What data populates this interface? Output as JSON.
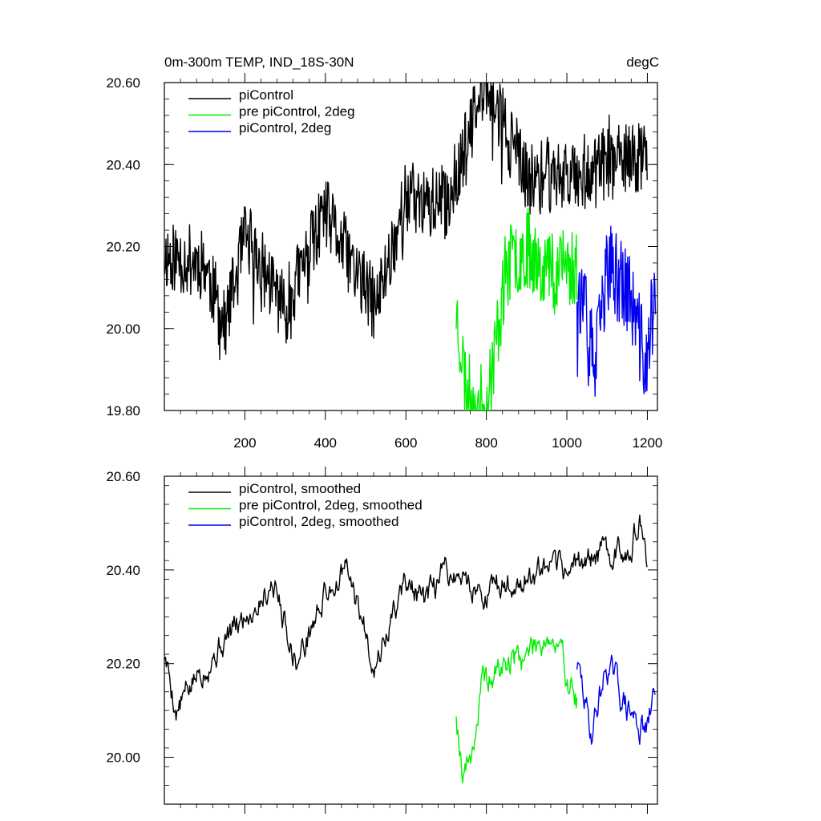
{
  "chart_data": [
    {
      "type": "line",
      "title": "0m-300m TEMP, IND_18S-30N",
      "unit_label": "degC",
      "xlim": [
        0,
        1225
      ],
      "ylim": [
        19.8,
        20.6
      ],
      "yticks": [
        "20.60",
        "20.40",
        "20.20",
        "20.00",
        "19.80"
      ],
      "xticks": [
        "200",
        "400",
        "600",
        "800",
        "1000",
        "1200"
      ],
      "legend_position": "top-left",
      "series": [
        {
          "name": "piControl",
          "color": "#000000",
          "x_start": 1,
          "x_end": 1200,
          "base_start": 20.18,
          "base_end": 20.38,
          "noise": 0.09,
          "seed": 11,
          "points": [
            [
              1,
              20.18
            ],
            [
              100,
              20.16
            ],
            [
              150,
              20.0
            ],
            [
              200,
              20.22
            ],
            [
              300,
              20.05
            ],
            [
              400,
              20.28
            ],
            [
              525,
              20.05
            ],
            [
              600,
              20.32
            ],
            [
              700,
              20.3
            ],
            [
              800,
              20.6
            ],
            [
              900,
              20.36
            ],
            [
              1000,
              20.38
            ],
            [
              1100,
              20.4
            ],
            [
              1200,
              20.42
            ]
          ]
        },
        {
          "name": "pre piControl, 2deg",
          "color": "#00ee00",
          "x_start": 725,
          "x_end": 1025,
          "base_start": 20.06,
          "base_end": 20.18,
          "noise": 0.1,
          "seed": 23,
          "points": [
            [
              725,
              20.05
            ],
            [
              750,
              19.85
            ],
            [
              800,
              19.8
            ],
            [
              850,
              20.15
            ],
            [
              900,
              20.2
            ],
            [
              950,
              20.15
            ],
            [
              1025,
              20.15
            ]
          ]
        },
        {
          "name": "piControl, 2deg",
          "color": "#0000ee",
          "x_start": 1025,
          "x_end": 1220,
          "base_start": 20.12,
          "base_end": 20.14,
          "noise": 0.11,
          "seed": 37,
          "points": [
            [
              1025,
              20.12
            ],
            [
              1070,
              19.9
            ],
            [
              1100,
              20.15
            ],
            [
              1150,
              20.1
            ],
            [
              1200,
              19.9
            ],
            [
              1220,
              20.14
            ]
          ]
        }
      ]
    },
    {
      "type": "line",
      "xlim": [
        0,
        1225
      ],
      "ylim": [
        19.9,
        20.6
      ],
      "yticks": [
        "20.60",
        "20.40",
        "20.20",
        "20.00"
      ],
      "legend_position": "top-left",
      "series": [
        {
          "name": "piControl, smoothed",
          "color": "#000000",
          "x_start": 1,
          "x_end": 1200,
          "base_start": 20.18,
          "base_end": 20.4,
          "noise": 0.045,
          "seed": 5,
          "points": [
            [
              1,
              20.22
            ],
            [
              30,
              20.1
            ],
            [
              100,
              20.2
            ],
            [
              200,
              20.3
            ],
            [
              270,
              20.38
            ],
            [
              330,
              20.2
            ],
            [
              400,
              20.35
            ],
            [
              450,
              20.4
            ],
            [
              525,
              20.2
            ],
            [
              600,
              20.38
            ],
            [
              650,
              20.32
            ],
            [
              700,
              20.4
            ],
            [
              800,
              20.35
            ],
            [
              900,
              20.38
            ],
            [
              1000,
              20.4
            ],
            [
              1050,
              20.42
            ],
            [
              1150,
              20.45
            ],
            [
              1180,
              20.5
            ],
            [
              1200,
              20.4
            ]
          ]
        },
        {
          "name": "pre piControl, 2deg, smoothed",
          "color": "#00ee00",
          "x_start": 725,
          "x_end": 1025,
          "base_start": 20.05,
          "base_end": 20.18,
          "noise": 0.05,
          "seed": 19,
          "points": [
            [
              725,
              20.1
            ],
            [
              740,
              19.98
            ],
            [
              760,
              20.0
            ],
            [
              790,
              20.15
            ],
            [
              850,
              20.2
            ],
            [
              900,
              20.22
            ],
            [
              950,
              20.27
            ],
            [
              1000,
              20.18
            ],
            [
              1025,
              20.12
            ]
          ]
        },
        {
          "name": "piControl, 2deg, smoothed",
          "color": "#0000ee",
          "x_start": 1025,
          "x_end": 1220,
          "base_start": 20.13,
          "base_end": 20.13,
          "noise": 0.05,
          "seed": 29,
          "points": [
            [
              1025,
              20.2
            ],
            [
              1060,
              20.05
            ],
            [
              1100,
              20.2
            ],
            [
              1150,
              20.1
            ],
            [
              1200,
              20.05
            ],
            [
              1220,
              20.15
            ]
          ]
        }
      ]
    }
  ]
}
